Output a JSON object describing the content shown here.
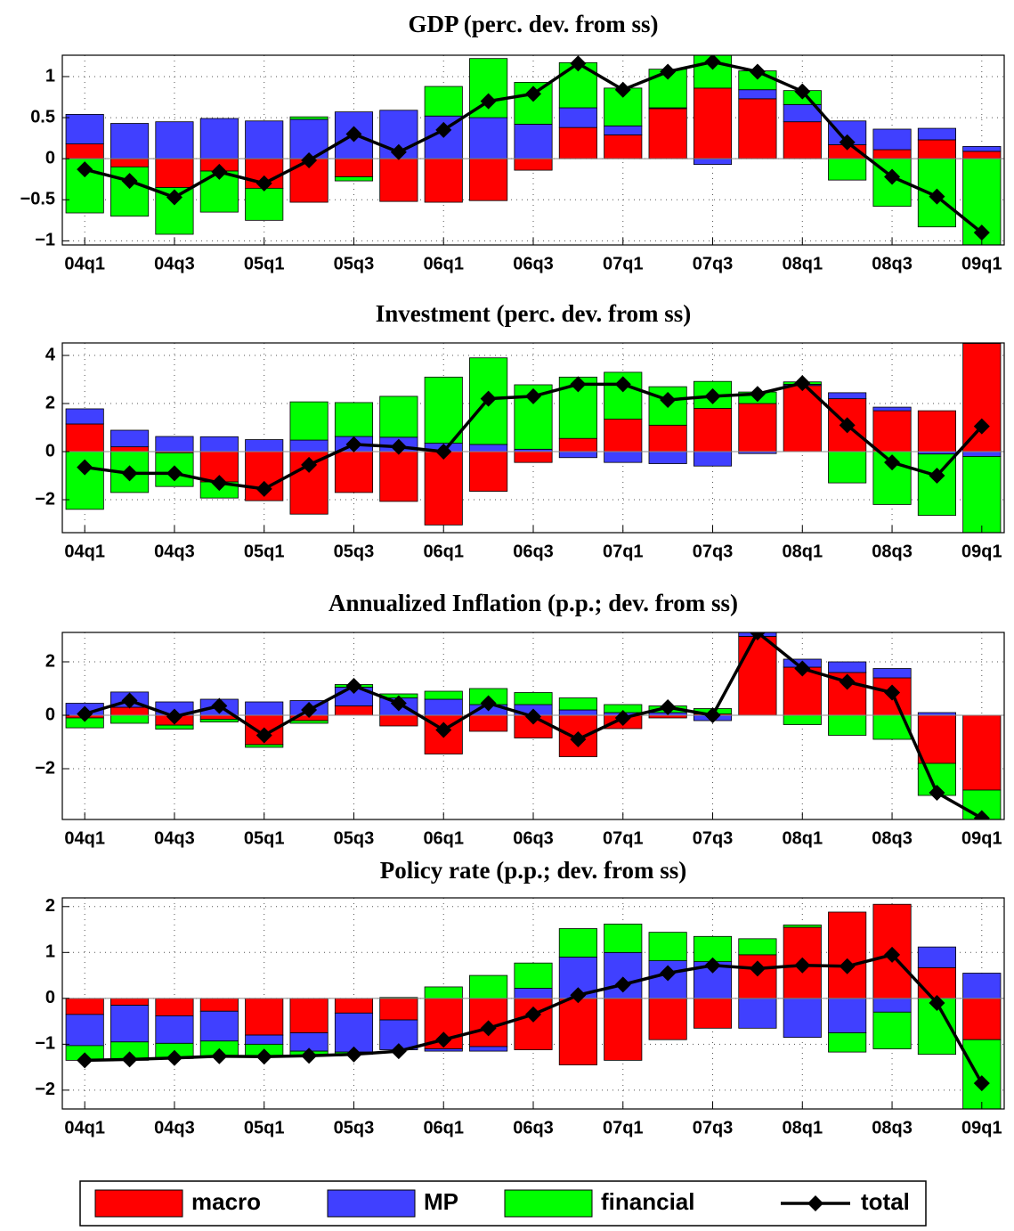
{
  "legend": {
    "position": "bottom"
  },
  "chart_data": [
    {
      "type": "bar",
      "stacked": true,
      "title": "GDP (perc. dev. from ss)",
      "categories": [
        "04q1",
        null,
        "04q3",
        null,
        "05q1",
        null,
        "05q3",
        null,
        "06q1",
        null,
        "06q3",
        null,
        "07q1",
        null,
        "07q3",
        null,
        "08q1",
        null,
        "08q3",
        null,
        "09q1"
      ],
      "ylim": [
        -1.05,
        1.26
      ],
      "yticks": [
        {
          "value": -1,
          "label": "−1"
        },
        {
          "value": -0.5,
          "label": "−0.5"
        },
        0,
        0.5,
        1
      ],
      "grid": true,
      "series": [
        {
          "name": "macro",
          "color": "#ff0000",
          "values": [
            0.18,
            -0.1,
            -0.35,
            -0.15,
            -0.36,
            -0.53,
            -0.22,
            -0.52,
            -0.53,
            -0.51,
            -0.14,
            0.38,
            0.29,
            0.61,
            0.86,
            0.73,
            0.45,
            0.17,
            0.11,
            0.23,
            0.09
          ]
        },
        {
          "name": "MP",
          "color": "#4040ff",
          "values": [
            0.36,
            0.43,
            0.45,
            0.49,
            0.46,
            0.48,
            0.57,
            0.59,
            0.52,
            0.5,
            0.42,
            0.24,
            0.11,
            0.01,
            -0.07,
            0.11,
            0.21,
            0.29,
            0.25,
            0.14,
            0.06
          ]
        },
        {
          "name": "financial",
          "color": "#00ff00",
          "values": [
            -0.66,
            -0.6,
            -0.57,
            -0.5,
            -0.39,
            0.03,
            -0.05,
            0,
            0.36,
            0.72,
            0.51,
            0.55,
            0.46,
            0.47,
            0.4,
            0.23,
            0.17,
            -0.26,
            -0.58,
            -0.83,
            -1.1
          ]
        },
        {
          "name": "total",
          "color": "#000000",
          "type": "line",
          "values": [
            -0.13,
            -0.27,
            -0.47,
            -0.16,
            -0.3,
            -0.02,
            0.3,
            0.08,
            0.35,
            0.7,
            0.79,
            1.16,
            0.84,
            1.06,
            1.18,
            1.06,
            0.82,
            0.2,
            -0.22,
            -0.46,
            -0.9
          ]
        }
      ]
    },
    {
      "type": "bar",
      "stacked": true,
      "title": "Investment (perc. dev. from ss)",
      "categories": [
        "04q1",
        null,
        "04q3",
        null,
        "05q1",
        null,
        "05q3",
        null,
        "06q1",
        null,
        "06q3",
        null,
        "07q1",
        null,
        "07q3",
        null,
        "08q1",
        null,
        "08q3",
        null,
        "09q1"
      ],
      "ylim": [
        -3.37,
        4.52
      ],
      "yticks": [
        {
          "value": -2,
          "label": "−2"
        },
        0,
        2,
        4
      ],
      "grid": true,
      "series": [
        {
          "name": "macro",
          "color": "#ff0000",
          "values": [
            1.15,
            0.2,
            -0.05,
            -1.26,
            -2.04,
            -2.6,
            -1.7,
            -2.07,
            -3.05,
            -1.65,
            -0.45,
            0.55,
            1.35,
            1.1,
            1.8,
            2.0,
            2.75,
            2.2,
            1.7,
            1.7,
            4.5
          ]
        },
        {
          "name": "MP",
          "color": "#4040ff",
          "values": [
            0.63,
            0.69,
            0.63,
            0.62,
            0.5,
            0.48,
            0.63,
            0.6,
            0.35,
            0.3,
            0.1,
            -0.25,
            -0.45,
            -0.5,
            -0.6,
            -0.08,
            0.05,
            0.25,
            0.15,
            -0.1,
            -0.2
          ]
        },
        {
          "name": "financial",
          "color": "#00ff00",
          "values": [
            -2.4,
            -1.7,
            -1.4,
            -0.67,
            0,
            1.59,
            1.41,
            1.7,
            2.75,
            3.6,
            2.68,
            2.55,
            1.95,
            1.6,
            1.12,
            0.48,
            0.1,
            -1.3,
            -2.2,
            -2.55,
            -3.2
          ]
        },
        {
          "name": "total",
          "color": "#000000",
          "type": "line",
          "values": [
            -0.65,
            -0.9,
            -0.9,
            -1.3,
            -1.55,
            -0.55,
            0.3,
            0.2,
            0,
            2.2,
            2.3,
            2.8,
            2.8,
            2.15,
            2.3,
            2.4,
            2.85,
            1.1,
            -0.45,
            -1.0,
            1.05
          ]
        }
      ]
    },
    {
      "type": "bar",
      "stacked": true,
      "title": "Annualized Inflation (p.p.; dev. from ss)",
      "categories": [
        "04q1",
        null,
        "04q3",
        null,
        "05q1",
        null,
        "05q3",
        null,
        "06q1",
        null,
        "06q3",
        null,
        "07q1",
        null,
        "07q3",
        null,
        "08q1",
        null,
        "08q3",
        null,
        "09q1"
      ],
      "ylim": [
        -3.9,
        3.1
      ],
      "yticks": [
        {
          "value": -2,
          "label": "−2"
        },
        0,
        2
      ],
      "grid": true,
      "series": [
        {
          "name": "macro",
          "color": "#ff0000",
          "values": [
            -0.1,
            0.3,
            -0.37,
            -0.15,
            -1.1,
            -0.2,
            0.35,
            -0.4,
            -1.45,
            -0.6,
            -0.85,
            -1.55,
            -0.5,
            -0.1,
            0.05,
            2.95,
            1.8,
            1.6,
            1.4,
            -1.8,
            -2.8
          ]
        },
        {
          "name": "MP",
          "color": "#4040ff",
          "values": [
            0.45,
            0.57,
            0.5,
            0.6,
            0.5,
            0.55,
            0.7,
            0.65,
            0.6,
            0.4,
            0.4,
            0.2,
            0.1,
            0.1,
            -0.2,
            0.15,
            0.3,
            0.4,
            0.35,
            0.1,
            0
          ]
        },
        {
          "name": "financial",
          "color": "#00ff00",
          "values": [
            -0.37,
            -0.3,
            -0.15,
            -0.1,
            -0.1,
            -0.1,
            0.1,
            0.15,
            0.3,
            0.6,
            0.45,
            0.45,
            0.3,
            0.25,
            0.2,
            0,
            -0.35,
            -0.75,
            -0.9,
            -1.2,
            -1.2
          ]
        },
        {
          "name": "total",
          "color": "#000000",
          "type": "line",
          "values": [
            0.05,
            0.55,
            -0.05,
            0.35,
            -0.75,
            0.2,
            1.1,
            0.45,
            -0.55,
            0.45,
            -0.05,
            -0.9,
            -0.1,
            0.3,
            0,
            3.1,
            1.75,
            1.25,
            0.85,
            -2.9,
            -3.85
          ]
        }
      ]
    },
    {
      "type": "bar",
      "stacked": true,
      "title": "Policy rate (p.p.; dev. from ss)",
      "categories": [
        "04q1",
        null,
        "04q3",
        null,
        "05q1",
        null,
        "05q3",
        null,
        "06q1",
        null,
        "06q3",
        null,
        "07q1",
        null,
        "07q3",
        null,
        "08q1",
        null,
        "08q3",
        null,
        "09q1"
      ],
      "ylim": [
        -2.41,
        2.19
      ],
      "yticks": [
        {
          "value": -2,
          "label": "−2"
        },
        {
          "value": -1,
          "label": "−1"
        },
        0,
        1,
        2
      ],
      "grid": true,
      "series": [
        {
          "name": "macro",
          "color": "#ff0000",
          "values": [
            -0.35,
            -0.15,
            -0.38,
            -0.28,
            -0.8,
            -0.75,
            -0.32,
            -0.47,
            -1.1,
            -1.05,
            -1.12,
            -1.45,
            -1.35,
            -0.9,
            -0.65,
            0.95,
            1.55,
            1.88,
            2.05,
            0.67,
            -0.9
          ]
        },
        {
          "name": "MP",
          "color": "#4040ff",
          "values": [
            -0.68,
            -0.8,
            -0.6,
            -0.65,
            -0.2,
            -0.4,
            -0.85,
            -0.65,
            -0.05,
            -0.1,
            0.22,
            0.9,
            1.0,
            0.82,
            0.8,
            -0.65,
            -0.85,
            -0.75,
            -0.3,
            0.45,
            0.55
          ]
        },
        {
          "name": "financial",
          "color": "#00ff00",
          "values": [
            -0.32,
            -0.4,
            -0.33,
            -0.33,
            -0.27,
            -0.1,
            -0.05,
            0.02,
            0.25,
            0.5,
            0.55,
            0.62,
            0.62,
            0.62,
            0.55,
            0.35,
            0.05,
            -0.42,
            -0.8,
            -1.22,
            -1.55
          ]
        },
        {
          "name": "total",
          "color": "#000000",
          "type": "line",
          "values": [
            -1.35,
            -1.33,
            -1.3,
            -1.26,
            -1.27,
            -1.25,
            -1.22,
            -1.15,
            -0.9,
            -0.65,
            -0.35,
            0.07,
            0.3,
            0.55,
            0.72,
            0.65,
            0.72,
            0.7,
            0.95,
            -0.1,
            -1.85
          ]
        }
      ]
    }
  ]
}
